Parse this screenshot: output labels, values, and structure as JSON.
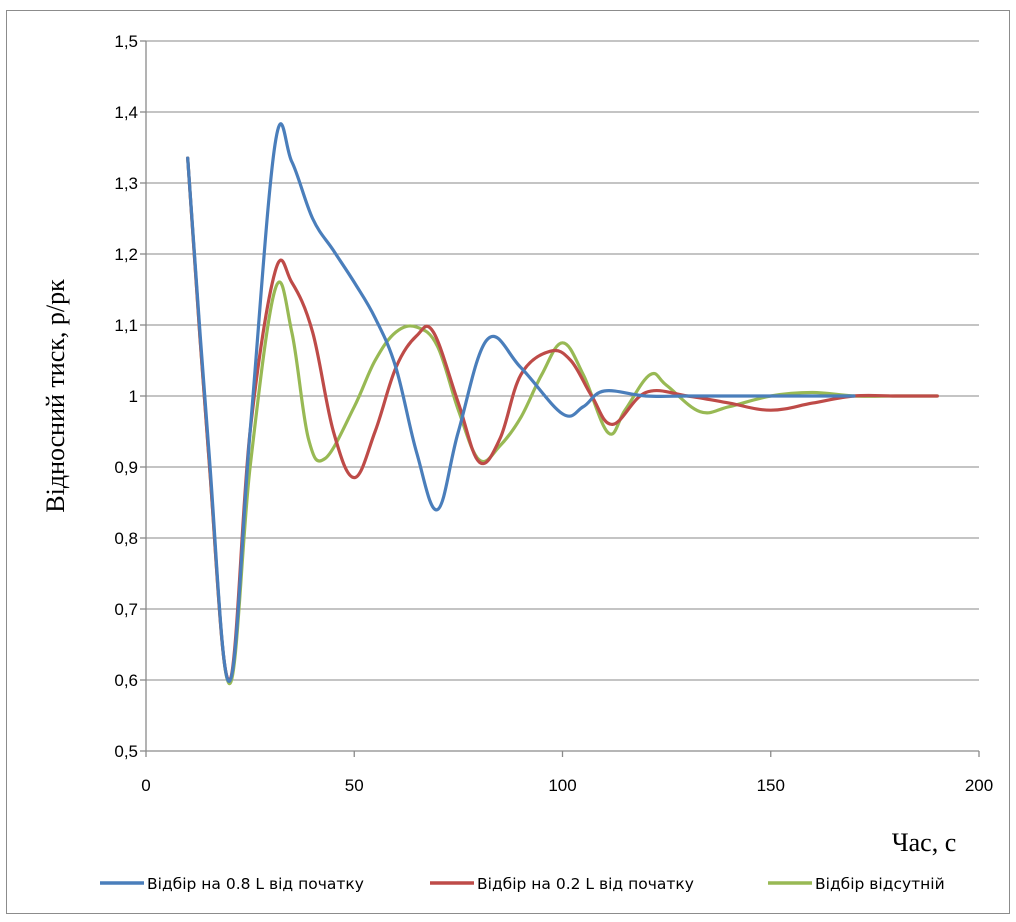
{
  "chart_data": {
    "type": "line",
    "xlabel": "Час, с",
    "ylabel": "Відносний тиск, р/рк",
    "xlim": [
      0,
      200
    ],
    "ylim": [
      0.5,
      1.5
    ],
    "xticks": [
      {
        "value": 0,
        "label": "0"
      },
      {
        "value": 50,
        "label": "50"
      },
      {
        "value": 100,
        "label": "100"
      },
      {
        "value": 150,
        "label": "150"
      },
      {
        "value": 200,
        "label": "200"
      }
    ],
    "yticks": [
      {
        "value": 0.5,
        "label": "0,5"
      },
      {
        "value": 0.6,
        "label": "0,6"
      },
      {
        "value": 0.7,
        "label": "0,7"
      },
      {
        "value": 0.8,
        "label": "0,8"
      },
      {
        "value": 0.9,
        "label": "0,9"
      },
      {
        "value": 1.0,
        "label": "1"
      },
      {
        "value": 1.1,
        "label": "1,1"
      },
      {
        "value": 1.2,
        "label": "1,2"
      },
      {
        "value": 1.3,
        "label": "1,3"
      },
      {
        "value": 1.4,
        "label": "1,4"
      },
      {
        "value": 1.5,
        "label": "1,5"
      }
    ],
    "grid": "horizontal",
    "legend_position": "bottom",
    "series": [
      {
        "name": "Відбір на 0.8 L від початку",
        "color": "#4a7ebb",
        "x": [
          10,
          15,
          20,
          25,
          31,
          35,
          40,
          45,
          50,
          55,
          60,
          65,
          70,
          75,
          82,
          90,
          100,
          105,
          110,
          120,
          130,
          140,
          150,
          160,
          170
        ],
        "y": [
          1.335,
          0.93,
          0.598,
          0.95,
          1.355,
          1.33,
          1.25,
          1.205,
          1.16,
          1.11,
          1.04,
          0.92,
          0.84,
          0.95,
          1.08,
          1.04,
          0.975,
          0.985,
          1.007,
          1.0,
          1.0,
          1.0,
          1.0,
          1.0,
          1.0
        ]
      },
      {
        "name": "Відбір на 0.2 L від початку",
        "color": "#be4b48",
        "x": [
          10,
          15,
          20,
          25,
          31,
          35,
          40,
          45,
          50,
          55,
          60,
          65,
          69,
          75,
          80,
          85,
          90,
          97,
          102,
          107,
          112,
          120,
          130,
          140,
          150,
          160,
          170,
          180,
          190
        ],
        "y": [
          1.335,
          0.92,
          0.6,
          0.95,
          1.175,
          1.16,
          1.09,
          0.95,
          0.885,
          0.95,
          1.04,
          1.085,
          1.09,
          0.99,
          0.907,
          0.94,
          1.03,
          1.063,
          1.05,
          1.0,
          0.96,
          1.005,
          1.0,
          0.99,
          0.98,
          0.99,
          1.0,
          1.0,
          1.0
        ]
      },
      {
        "name": "Відбір відсутній",
        "color": "#98b954",
        "x": [
          10,
          15,
          20,
          25,
          31,
          35,
          39,
          43,
          50,
          55,
          60,
          65,
          70,
          75,
          80,
          85,
          90,
          95,
          100,
          105,
          111,
          115,
          121,
          125,
          133,
          140,
          150,
          160,
          170,
          180,
          190
        ],
        "y": [
          1.335,
          0.92,
          0.595,
          0.9,
          1.15,
          1.09,
          0.94,
          0.912,
          0.985,
          1.05,
          1.09,
          1.097,
          1.07,
          0.98,
          0.91,
          0.93,
          0.97,
          1.03,
          1.075,
          1.03,
          0.948,
          0.98,
          1.03,
          1.015,
          0.978,
          0.985,
          1.0,
          1.005,
          1.0,
          1.0,
          1.0
        ]
      }
    ]
  }
}
